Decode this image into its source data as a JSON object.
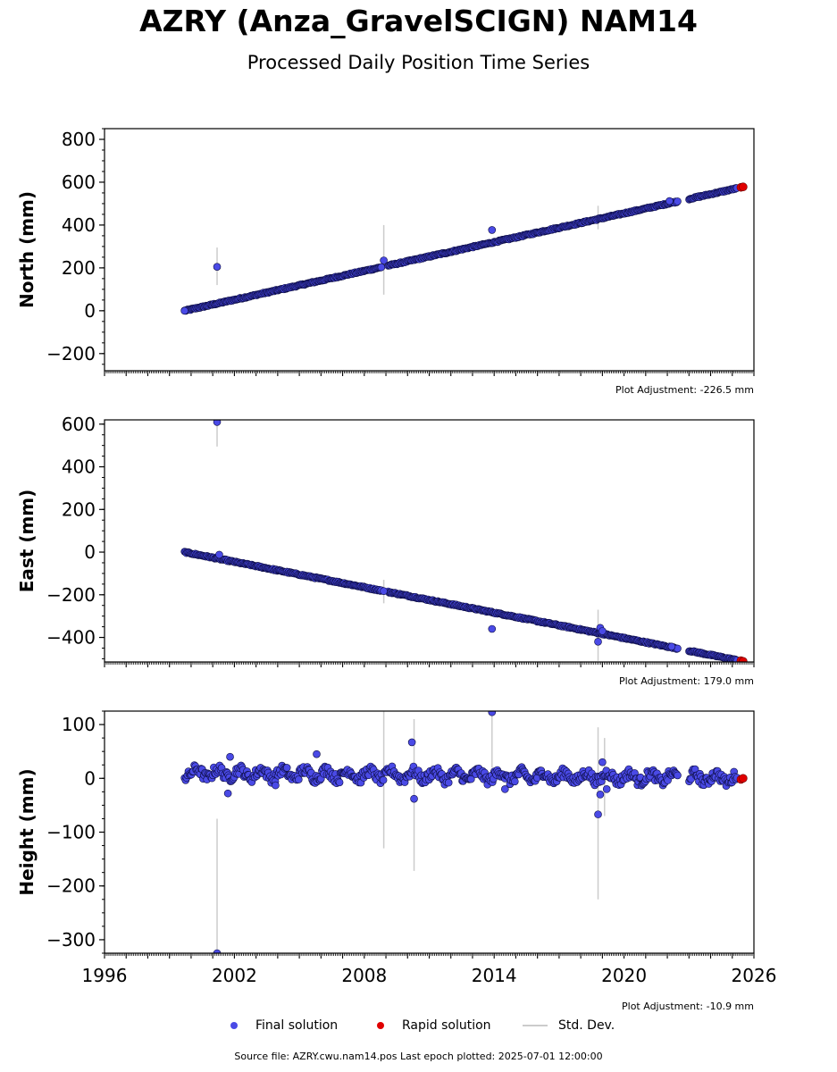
{
  "title": "AZRY (Anza_GravelSCIGN) NAM14",
  "subtitle": "Processed Daily Position Time Series",
  "legend": {
    "final": "Final solution",
    "rapid": "Rapid solution",
    "stddev": "Std. Dev."
  },
  "footer": "Source file: AZRY.cwu.nam14.pos  Last epoch plotted: 2025-07-01 12:00:00",
  "colors": {
    "final": "#4a4ae6",
    "rapid": "#e00000",
    "stddev": "#cccccc",
    "edge": "#0b0b40"
  },
  "chart_data": [
    {
      "type": "scatter",
      "ylabel": "North (mm)",
      "adjustment": "Plot Adjustment: -226.5 mm",
      "xlim": [
        1996,
        2026
      ],
      "ylim": [
        -280,
        850
      ],
      "yticks": [
        800,
        600,
        400,
        200,
        0,
        -200
      ],
      "ytick_labels": [
        "800",
        "600",
        "400",
        "200",
        "0",
        "−200"
      ],
      "trend": {
        "x": [
          1999.7,
          2025.5
        ],
        "y": [
          0,
          578
        ]
      },
      "gaps": [
        [
          2008.8,
          2009.1
        ],
        [
          2022.5,
          2023.0
        ]
      ],
      "series": [
        {
          "name": "Final solution",
          "points": [
            [
              1999.7,
              0
            ],
            [
              2001.2,
              205
            ],
            [
              2008.9,
              235
            ],
            [
              2013.9,
              377
            ],
            [
              2022.1,
              512
            ]
          ]
        },
        {
          "name": "Rapid solution",
          "points": [
            [
              2025.4,
              576
            ],
            [
              2025.5,
              578
            ]
          ]
        }
      ],
      "std_dev": [
        [
          2001.2,
          120,
          295
        ],
        [
          2008.9,
          75,
          400
        ],
        [
          2018.8,
          380,
          490
        ]
      ]
    },
    {
      "type": "scatter",
      "ylabel": "East (mm)",
      "adjustment": "Plot Adjustment: 179.0 mm",
      "xlim": [
        1996,
        2026
      ],
      "ylim": [
        -515,
        620
      ],
      "yticks": [
        600,
        400,
        200,
        0,
        -200,
        -400
      ],
      "ytick_labels": [
        "600",
        "400",
        "200",
        "0",
        "−200",
        "−400"
      ],
      "trend": {
        "x": [
          1999.7,
          2025.5
        ],
        "y": [
          0,
          -512
        ]
      },
      "gaps": [
        [
          2008.8,
          2009.1
        ],
        [
          2022.5,
          2023.0
        ]
      ],
      "series": [
        {
          "name": "Final solution",
          "points": [
            [
              2001.2,
              610
            ],
            [
              2001.3,
              -12
            ],
            [
              2008.9,
              -183
            ],
            [
              2013.9,
              -360
            ],
            [
              2018.8,
              -420
            ],
            [
              2018.9,
              -355
            ],
            [
              2019.0,
              -370
            ],
            [
              2022.2,
              -443
            ]
          ]
        },
        {
          "name": "Rapid solution",
          "points": [
            [
              2025.4,
              -509
            ],
            [
              2025.5,
              -512
            ]
          ]
        }
      ],
      "std_dev": [
        [
          2001.2,
          495,
          620
        ],
        [
          2008.9,
          -240,
          -130
        ],
        [
          2018.8,
          -510,
          -270
        ]
      ]
    },
    {
      "type": "scatter",
      "ylabel": "Height (mm)",
      "adjustment": "Plot Adjustment: -10.9 mm",
      "xlim": [
        1996,
        2026
      ],
      "ylim": [
        -325,
        125
      ],
      "xticks": [
        1996,
        2002,
        2008,
        2014,
        2020,
        2026
      ],
      "xtick_labels": [
        "1996",
        "2002",
        "2008",
        "2014",
        "2020",
        "2026"
      ],
      "yticks": [
        100,
        0,
        -100,
        -200,
        -300
      ],
      "ytick_labels": [
        "100",
        "0",
        "−100",
        "−200",
        "−300"
      ],
      "trend": {
        "x": [
          1999.7,
          2025.5
        ],
        "y": [
          10,
          0
        ]
      },
      "gaps": [
        [
          2022.5,
          2023.0
        ]
      ],
      "series": [
        {
          "name": "Final solution",
          "points": [
            [
              2001.2,
              -325
            ],
            [
              2001.7,
              -28
            ],
            [
              2001.8,
              40
            ],
            [
              2003.9,
              -13
            ],
            [
              2005.8,
              45
            ],
            [
              2010.2,
              67
            ],
            [
              2010.3,
              -38
            ],
            [
              2013.9,
              123
            ],
            [
              2014.5,
              -20
            ],
            [
              2018.8,
              -67
            ],
            [
              2018.9,
              -30
            ],
            [
              2019.0,
              30
            ],
            [
              2019.2,
              -20
            ]
          ]
        },
        {
          "name": "Rapid solution",
          "points": [
            [
              2025.4,
              -2
            ],
            [
              2025.5,
              0
            ]
          ]
        }
      ],
      "std_dev": [
        [
          2001.2,
          -325,
          -75
        ],
        [
          2008.9,
          -130,
          125
        ],
        [
          2010.3,
          -172,
          110
        ],
        [
          2013.9,
          20,
          125
        ],
        [
          2018.8,
          -225,
          95
        ],
        [
          2019.1,
          -70,
          75
        ]
      ]
    }
  ]
}
